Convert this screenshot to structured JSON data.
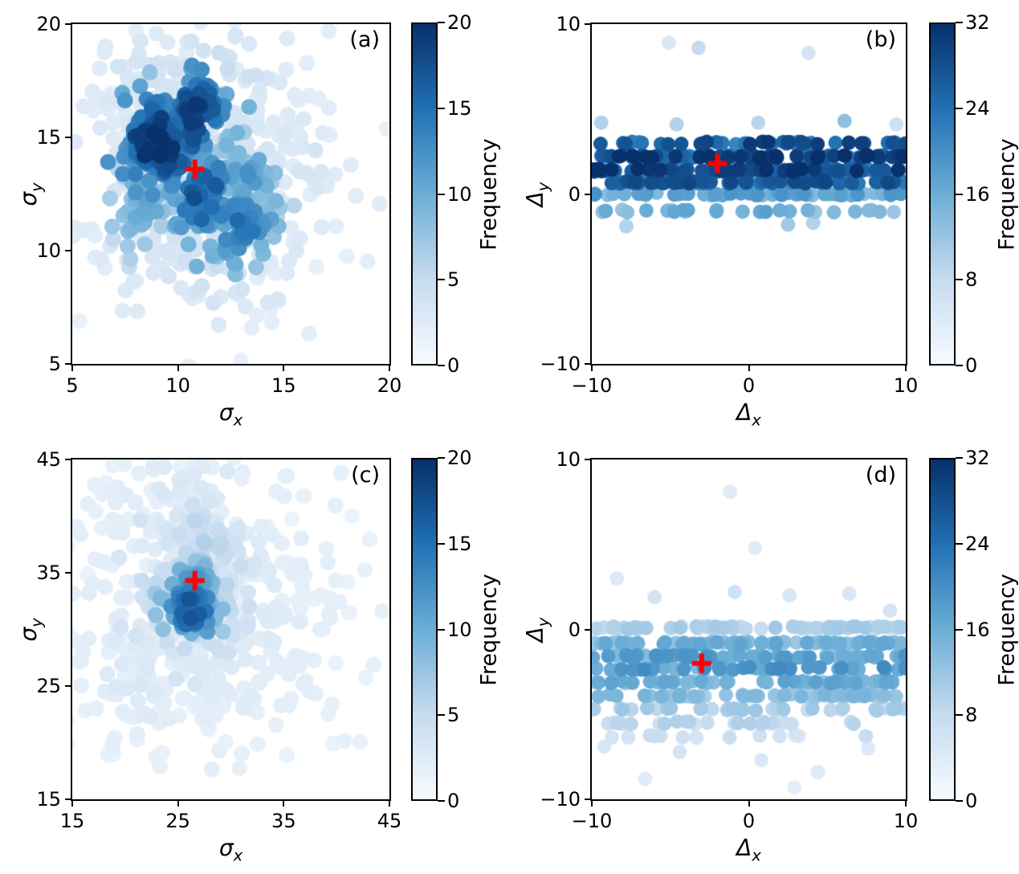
{
  "figure": {
    "background": "#ffffff",
    "marker_color": "#ff0000",
    "colormap": [
      [
        247,
        251,
        255
      ],
      [
        198,
        219,
        239
      ],
      [
        107,
        174,
        214
      ],
      [
        33,
        113,
        181
      ],
      [
        8,
        48,
        107
      ]
    ]
  },
  "chart_data": [
    {
      "id": "a",
      "type": "scatter",
      "corner_label": "(a)",
      "xlabel": {
        "main": "σ",
        "sub": "x"
      },
      "ylabel": {
        "main": "σ",
        "sub": "y"
      },
      "xlim": [
        5,
        20
      ],
      "ylim": [
        5,
        20
      ],
      "xticks": [
        5,
        10,
        15,
        20
      ],
      "yticks": [
        5,
        10,
        15,
        20
      ],
      "colorbar": {
        "label": "Frequency",
        "vmin": 0,
        "vmax": 20,
        "ticks": [
          0,
          5,
          10,
          15,
          20
        ]
      },
      "marker": {
        "x": 10.8,
        "y": 13.6
      },
      "seed": 101,
      "point_radius": 10,
      "clusters": [
        {
          "cx": 11.0,
          "cy": 13.2,
          "sx": 2.9,
          "sy": 2.7,
          "n": 280,
          "v": 0.2
        },
        {
          "cx": 9.0,
          "cy": 14.8,
          "sx": 1.0,
          "sy": 1.1,
          "n": 110,
          "v": 0.95
        },
        {
          "cx": 10.8,
          "cy": 15.9,
          "sx": 0.8,
          "sy": 1.1,
          "n": 85,
          "v": 0.88
        },
        {
          "cx": 11.3,
          "cy": 12.4,
          "sx": 0.8,
          "sy": 0.9,
          "n": 65,
          "v": 0.85
        },
        {
          "cx": 13.1,
          "cy": 13.3,
          "sx": 0.9,
          "sy": 0.8,
          "n": 55,
          "v": 0.55
        },
        {
          "cx": 12.9,
          "cy": 11.1,
          "sx": 0.9,
          "sy": 0.8,
          "n": 55,
          "v": 0.72
        },
        {
          "cx": 8.3,
          "cy": 12.1,
          "sx": 0.9,
          "sy": 1.0,
          "n": 45,
          "v": 0.5
        },
        {
          "cx": 11.6,
          "cy": 17.6,
          "sx": 2.2,
          "sy": 1.3,
          "n": 45,
          "v": 0.22
        },
        {
          "cx": 12.2,
          "cy": 9.4,
          "sx": 2.4,
          "sy": 1.3,
          "n": 45,
          "v": 0.2
        },
        {
          "cx": 15.8,
          "cy": 13.8,
          "sx": 1.6,
          "sy": 2.4,
          "n": 40,
          "v": 0.16
        },
        {
          "cx": 8.0,
          "cy": 17.5,
          "sx": 1.5,
          "sy": 1.2,
          "n": 30,
          "v": 0.18
        }
      ]
    },
    {
      "id": "b",
      "type": "scatter",
      "corner_label": "(b)",
      "xlabel": {
        "main": "Δ",
        "sub": "x"
      },
      "ylabel": {
        "main": "Δ",
        "sub": "y"
      },
      "xlim": [
        -10,
        10
      ],
      "ylim": [
        -10,
        10
      ],
      "xticks": [
        -10,
        0,
        10
      ],
      "yticks": [
        -10,
        0,
        10
      ],
      "colorbar": {
        "label": "Frequency",
        "vmin": 0,
        "vmax": 32,
        "ticks": [
          0,
          8,
          16,
          24,
          32
        ]
      },
      "marker": {
        "x": -2.0,
        "y": 1.8
      },
      "seed": 202,
      "point_radius": 9,
      "rows": [
        {
          "y": 3.0,
          "n": 45,
          "v": 0.88
        },
        {
          "y": 2.2,
          "n": 95,
          "v": 0.95
        },
        {
          "y": 1.4,
          "n": 95,
          "v": 0.92
        },
        {
          "y": 0.7,
          "n": 90,
          "v": 0.82
        },
        {
          "y": 0.0,
          "n": 75,
          "v": 0.55
        },
        {
          "y": -1.0,
          "n": 26,
          "v": 0.5
        }
      ],
      "extra_points": [
        {
          "x": -3.2,
          "y": 8.6,
          "v": 0.25
        },
        {
          "x": -5.1,
          "y": 8.9,
          "v": 0.15
        },
        {
          "x": 3.8,
          "y": 8.3,
          "v": 0.18
        },
        {
          "x": -9.4,
          "y": 4.2,
          "v": 0.3
        },
        {
          "x": -4.6,
          "y": 4.1,
          "v": 0.3
        },
        {
          "x": 0.6,
          "y": 4.2,
          "v": 0.28
        },
        {
          "x": 6.1,
          "y": 4.3,
          "v": 0.4
        },
        {
          "x": 9.4,
          "y": 4.1,
          "v": 0.2
        },
        {
          "x": -7.8,
          "y": -1.9,
          "v": 0.3
        },
        {
          "x": 2.5,
          "y": -1.8,
          "v": 0.35
        },
        {
          "x": 4.1,
          "y": -1.7,
          "v": 0.3
        }
      ]
    },
    {
      "id": "c",
      "type": "scatter",
      "corner_label": "(c)",
      "xlabel": {
        "main": "σ",
        "sub": "x"
      },
      "ylabel": {
        "main": "σ",
        "sub": "y"
      },
      "xlim": [
        15,
        45
      ],
      "ylim": [
        15,
        45
      ],
      "xticks": [
        15,
        25,
        35,
        45
      ],
      "yticks": [
        15,
        25,
        35,
        45
      ],
      "colorbar": {
        "label": "Frequency",
        "vmin": 0,
        "vmax": 20,
        "ticks": [
          0,
          5,
          10,
          15,
          20
        ]
      },
      "marker": {
        "x": 26.6,
        "y": 34.3
      },
      "seed": 303,
      "point_radius": 10,
      "clusters": [
        {
          "cx": 27.0,
          "cy": 31.5,
          "sx": 7.0,
          "sy": 7.0,
          "n": 300,
          "v": 0.14
        },
        {
          "cx": 26.5,
          "cy": 33.0,
          "sx": 3.0,
          "sy": 3.0,
          "n": 90,
          "v": 0.3
        },
        {
          "cx": 26.2,
          "cy": 31.8,
          "sx": 1.2,
          "sy": 1.4,
          "n": 80,
          "v": 0.8
        },
        {
          "cx": 26.8,
          "cy": 34.3,
          "sx": 1.0,
          "sy": 1.0,
          "n": 45,
          "v": 0.55
        },
        {
          "cx": 27.5,
          "cy": 38.0,
          "sx": 1.6,
          "sy": 2.2,
          "n": 45,
          "v": 0.28
        },
        {
          "cx": 25.5,
          "cy": 42.5,
          "sx": 4.0,
          "sy": 1.8,
          "n": 35,
          "v": 0.14
        },
        {
          "cx": 33.0,
          "cy": 27.0,
          "sx": 6.0,
          "sy": 5.0,
          "n": 60,
          "v": 0.12
        },
        {
          "cx": 21.0,
          "cy": 25.0,
          "sx": 3.5,
          "sy": 4.0,
          "n": 45,
          "v": 0.13
        }
      ]
    },
    {
      "id": "d",
      "type": "scatter",
      "corner_label": "(d)",
      "xlabel": {
        "main": "Δ",
        "sub": "x"
      },
      "ylabel": {
        "main": "Δ",
        "sub": "y"
      },
      "xlim": [
        -10,
        10
      ],
      "ylim": [
        -10,
        10
      ],
      "xticks": [
        -10,
        0,
        10
      ],
      "yticks": [
        -10,
        0,
        10
      ],
      "colorbar": {
        "label": "Frequency",
        "vmin": 0,
        "vmax": 32,
        "ticks": [
          0,
          8,
          16,
          24,
          32
        ]
      },
      "marker": {
        "x": -3.0,
        "y": -2.0
      },
      "seed": 404,
      "point_radius": 9,
      "rows": [
        {
          "y": 0.1,
          "n": 65,
          "v": 0.32
        },
        {
          "y": -0.8,
          "n": 70,
          "v": 0.48
        },
        {
          "y": -1.6,
          "n": 60,
          "v": 0.55
        },
        {
          "y": -2.3,
          "n": 55,
          "v": 0.58
        },
        {
          "y": -3.1,
          "n": 60,
          "v": 0.5
        },
        {
          "y": -3.9,
          "n": 55,
          "v": 0.42
        },
        {
          "y": -4.7,
          "n": 40,
          "v": 0.33
        },
        {
          "y": -5.5,
          "n": 24,
          "v": 0.28
        },
        {
          "y": -6.3,
          "n": 14,
          "v": 0.22
        }
      ],
      "extra_points": [
        {
          "x": -6.0,
          "y": 1.9,
          "v": 0.18
        },
        {
          "x": -0.9,
          "y": 2.2,
          "v": 0.2
        },
        {
          "x": 2.6,
          "y": 2.0,
          "v": 0.16
        },
        {
          "x": -8.4,
          "y": 3.0,
          "v": 0.14
        },
        {
          "x": 0.4,
          "y": 4.8,
          "v": 0.12
        },
        {
          "x": -1.2,
          "y": 8.1,
          "v": 0.12
        },
        {
          "x": 6.4,
          "y": 2.1,
          "v": 0.15
        },
        {
          "x": 9.0,
          "y": 1.1,
          "v": 0.18
        },
        {
          "x": -9.2,
          "y": -6.9,
          "v": 0.16
        },
        {
          "x": -4.4,
          "y": -7.2,
          "v": 0.18
        },
        {
          "x": 0.8,
          "y": -7.7,
          "v": 0.15
        },
        {
          "x": 4.4,
          "y": -8.4,
          "v": 0.13
        },
        {
          "x": 7.6,
          "y": -7.0,
          "v": 0.14
        },
        {
          "x": 2.9,
          "y": -9.3,
          "v": 0.1
        },
        {
          "x": -6.6,
          "y": -8.8,
          "v": 0.12
        }
      ]
    }
  ]
}
